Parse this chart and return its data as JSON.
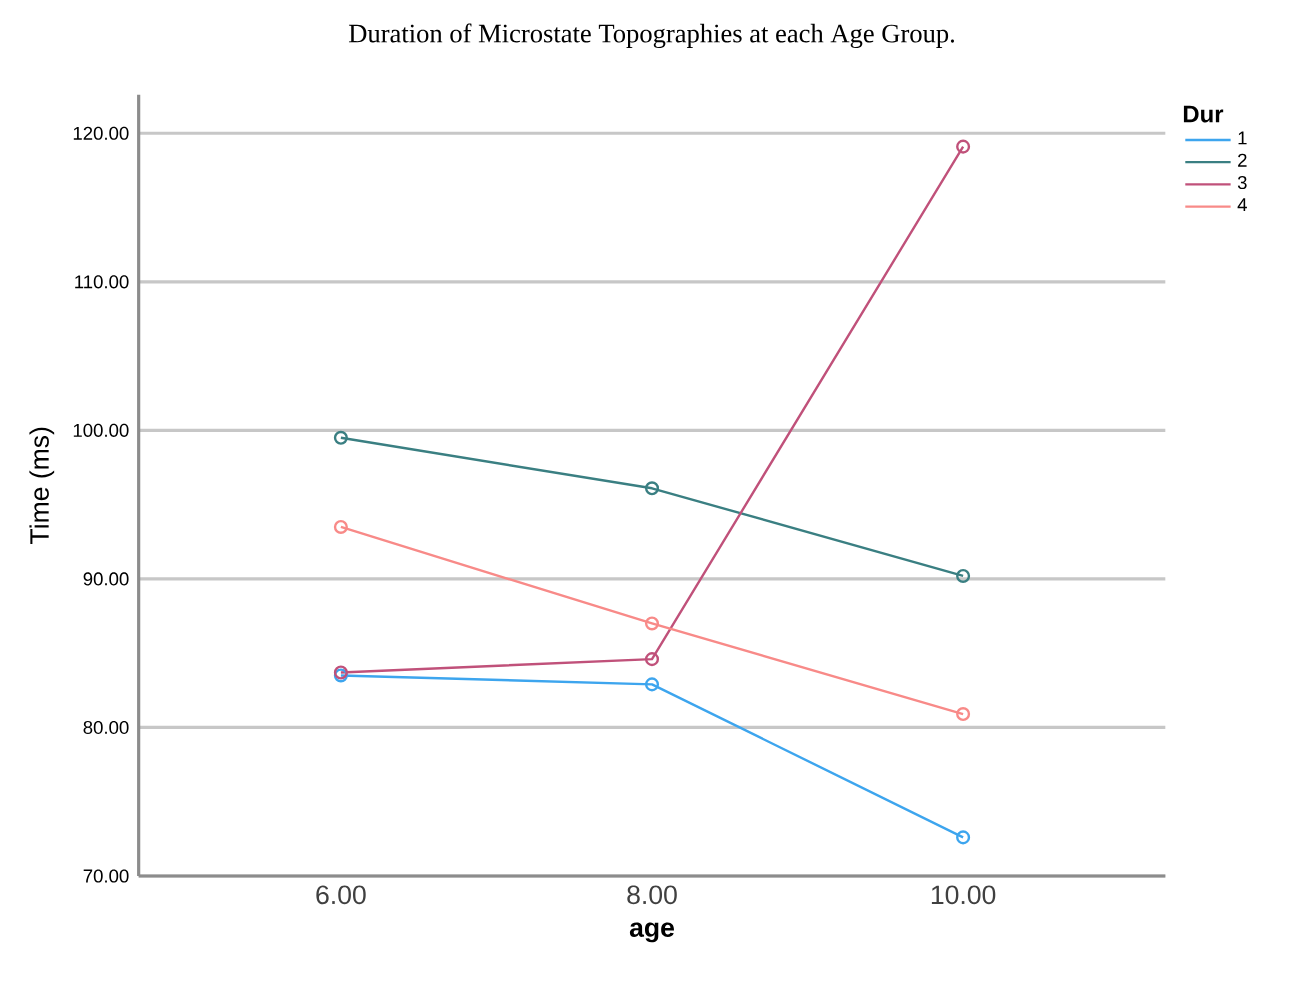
{
  "chart_data": {
    "type": "line",
    "title": "Duration of Microstate Topographies at each Age Group.",
    "xlabel": "age",
    "ylabel": "Time (ms)",
    "legend_title": "Dur",
    "x": [
      6,
      8,
      10
    ],
    "series": [
      {
        "name": "1",
        "color": "#3da5ee",
        "values": [
          83.5,
          82.9,
          72.6
        ]
      },
      {
        "name": "2",
        "color": "#3a7f82",
        "values": [
          99.5,
          96.1,
          90.2
        ]
      },
      {
        "name": "3",
        "color": "#c0517a",
        "values": [
          83.7,
          84.6,
          119.1
        ]
      },
      {
        "name": "4",
        "color": "#f88a88",
        "values": [
          93.5,
          87.0,
          80.9
        ]
      }
    ],
    "xlim": [
      4.7,
      11.3
    ],
    "xticks": [
      {
        "value": 6,
        "label": "6.00"
      },
      {
        "value": 8,
        "label": "8.00"
      },
      {
        "value": 10,
        "label": "10.00"
      }
    ],
    "ylim": [
      70,
      122.6
    ],
    "yticks": [
      {
        "value": 70,
        "label": "70.00"
      },
      {
        "value": 80,
        "label": "80.00"
      },
      {
        "value": 90,
        "label": "90.00"
      },
      {
        "value": 100,
        "label": "100.00"
      },
      {
        "value": 110,
        "label": "110.00"
      },
      {
        "value": 120,
        "label": "120.00"
      }
    ],
    "grid": "y",
    "legend": "right",
    "marker": "circle",
    "line_style": "solid"
  }
}
